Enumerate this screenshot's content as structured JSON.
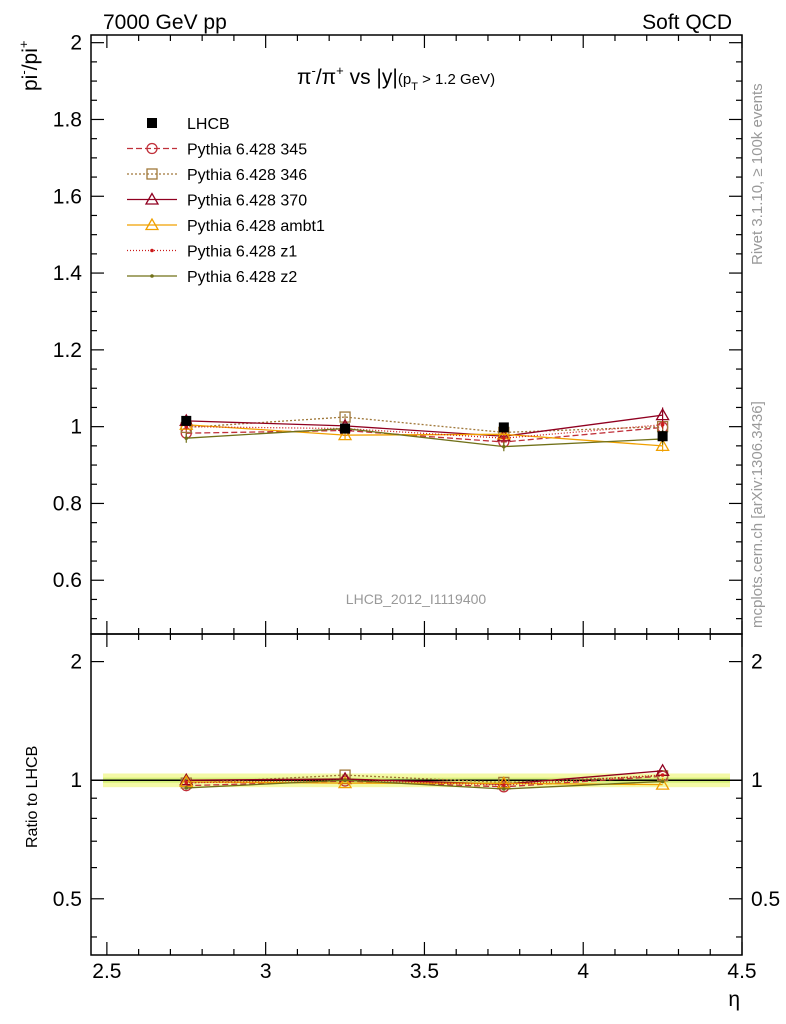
{
  "header": {
    "left": "7000 GeV pp",
    "right": "Soft QCD"
  },
  "side": {
    "top": "Rivet 3.1.10, ≥ 100k events",
    "bottom": "mcplots.cern.ch [arXiv:1306.3436]"
  },
  "chart_data": {
    "type": "line",
    "title": "π⁻/π⁺ vs |y|(p_T > 1.2 GeV)",
    "title_parts": {
      "main_a": "π",
      "sup_a": "-",
      "main_b": "/π",
      "sup_b": "+",
      "main_c": " vs |y|",
      "sub_1": "(p",
      "sub_T": "T",
      "sub_2": " > 1.2 GeV)"
    },
    "ylabel": "pi⁻/pi⁺",
    "ylabel_parts": {
      "base_a": "pi",
      "sup_a": "-",
      "base_b": "/pi",
      "sup_b": "+"
    },
    "xlabel": "η",
    "ratio_ylabel": "Ratio to LHCB",
    "watermark": "LHCB_2012_I1119400",
    "xlim": [
      2.45,
      4.5
    ],
    "ylim": [
      0.46,
      2.02
    ],
    "ratio_ylim": [
      0.36,
      2.35
    ],
    "x_ticks": [
      2.5,
      3,
      3.5,
      4,
      4.5
    ],
    "x_tick_labels": [
      "2.5",
      "3",
      "3.5",
      "4",
      "4.5"
    ],
    "y_ticks": [
      0.6,
      0.8,
      1,
      1.2,
      1.4,
      1.6,
      1.8,
      2
    ],
    "y_tick_labels": [
      "0.6",
      "0.8",
      "1",
      "1.2",
      "1.4",
      "1.6",
      "1.8",
      "2"
    ],
    "ratio_ticks": [
      0.5,
      1,
      2
    ],
    "ratio_tick_labels": [
      "0.5",
      "1",
      "2"
    ],
    "x": [
      2.75,
      3.25,
      3.75,
      4.25
    ],
    "data": {
      "name": "LHCB",
      "values": [
        1.015,
        0.995,
        0.998,
        0.975
      ],
      "errors": [
        0.012,
        0.012,
        0.012,
        0.015
      ],
      "color": "#000000"
    },
    "ratio_band": {
      "inner": 0.015,
      "outer": 0.04,
      "inner_color": "#d6f07a",
      "outer_color": "#f4f9a6"
    },
    "series": [
      {
        "name": "Pythia 6.428 345",
        "values": [
          0.983,
          0.99,
          0.96,
          0.998
        ],
        "errors": [
          0.008,
          0.008,
          0.008,
          0.01
        ],
        "color": "#c0303a",
        "dash": "6,3",
        "marker": "circle"
      },
      {
        "name": "Pythia 6.428 346",
        "values": [
          0.998,
          1.025,
          0.985,
          1.0
        ],
        "errors": [
          0.008,
          0.008,
          0.008,
          0.01
        ],
        "color": "#a0783a",
        "dash": "2,2",
        "marker": "square"
      },
      {
        "name": "Pythia 6.428 370",
        "values": [
          1.015,
          1.002,
          0.975,
          1.03
        ],
        "errors": [
          0.01,
          0.01,
          0.01,
          0.02
        ],
        "color": "#900020",
        "dash": "",
        "marker": "triangle"
      },
      {
        "name": "Pythia 6.428 ambt1",
        "values": [
          1.005,
          0.978,
          0.98,
          0.95
        ],
        "errors": [
          0.01,
          0.01,
          0.01,
          0.015
        ],
        "color": "#f0a000",
        "dash": "",
        "marker": "triangle"
      },
      {
        "name": "Pythia 6.428 z1",
        "values": [
          1.0,
          0.995,
          0.97,
          1.005
        ],
        "errors": [
          0.008,
          0.008,
          0.008,
          0.01
        ],
        "color": "#cc1a1a",
        "dash": "1,2",
        "marker": "dot"
      },
      {
        "name": "Pythia 6.428 z2",
        "values": [
          0.97,
          0.995,
          0.948,
          0.968
        ],
        "errors": [
          0.012,
          0.012,
          0.012,
          0.015
        ],
        "color": "#707018",
        "dash": "",
        "marker": "dot"
      }
    ]
  }
}
